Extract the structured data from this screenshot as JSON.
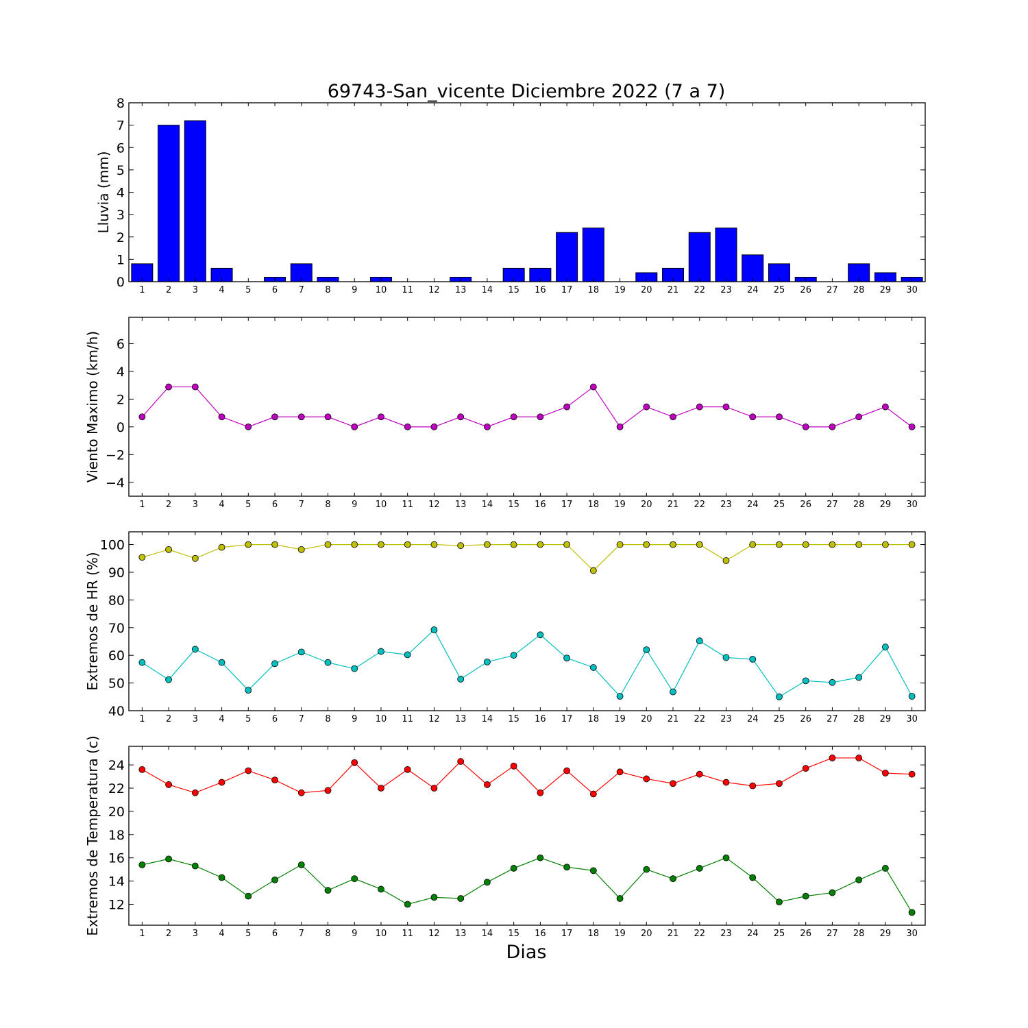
{
  "chart_data": [
    {
      "type": "bar",
      "title": "69743-San_vicente Diciembre 2022  (7 a 7)",
      "ylabel": "Lluvia (mm)",
      "categories": [
        "1",
        "2",
        "3",
        "4",
        "5",
        "6",
        "7",
        "8",
        "9",
        "10",
        "11",
        "12",
        "13",
        "14",
        "15",
        "16",
        "17",
        "18",
        "19",
        "20",
        "21",
        "22",
        "23",
        "24",
        "25",
        "26",
        "27",
        "28",
        "29",
        "30"
      ],
      "values": [
        0.8,
        7.0,
        7.2,
        0.6,
        0.0,
        0.2,
        0.8,
        0.2,
        0.0,
        0.2,
        0.0,
        0.0,
        0.2,
        0.0,
        0.6,
        0.6,
        2.2,
        2.4,
        0.0,
        0.4,
        0.6,
        2.2,
        2.4,
        1.2,
        0.8,
        0.2,
        0.0,
        0.8,
        0.4,
        0.2
      ],
      "ylim": [
        0,
        8
      ],
      "yticks": [
        0,
        1,
        2,
        3,
        4,
        5,
        6,
        7,
        8
      ],
      "colors": {
        "bar": "#0000ff"
      }
    },
    {
      "type": "line",
      "ylabel": "Viento Maximo (km/h)",
      "x": [
        1,
        2,
        3,
        4,
        5,
        6,
        7,
        8,
        9,
        10,
        11,
        12,
        13,
        14,
        15,
        16,
        17,
        18,
        19,
        20,
        21,
        22,
        23,
        24,
        25,
        26,
        27,
        28,
        29,
        30
      ],
      "series": [
        {
          "values": [
            0.72,
            2.88,
            2.88,
            0.72,
            0.0,
            0.72,
            0.72,
            0.72,
            0.0,
            0.72,
            0.0,
            0.0,
            0.72,
            0.0,
            0.72,
            0.72,
            1.44,
            2.88,
            0.0,
            1.44,
            0.72,
            1.44,
            1.44,
            0.72,
            0.72,
            0.0,
            0.0,
            0.72,
            1.44,
            0.0
          ],
          "color": "#bf00bf"
        }
      ],
      "ylim": [
        -5,
        7.9
      ],
      "yticks": [
        -4,
        -2,
        0,
        2,
        4,
        6
      ]
    },
    {
      "type": "line",
      "ylabel": "Extremos de HR (%)",
      "x": [
        1,
        2,
        3,
        4,
        5,
        6,
        7,
        8,
        9,
        10,
        11,
        12,
        13,
        14,
        15,
        16,
        17,
        18,
        19,
        20,
        21,
        22,
        23,
        24,
        25,
        26,
        27,
        28,
        29,
        30
      ],
      "series": [
        {
          "values": [
            95.4,
            98.2,
            95.0,
            99.0,
            100,
            100,
            98.2,
            100,
            100,
            100,
            100,
            100,
            99.6,
            100,
            100,
            100,
            100,
            90.6,
            100,
            100,
            100,
            100,
            94.2,
            100,
            100,
            100,
            100,
            100,
            100,
            100
          ],
          "color": "#bfbf00"
        },
        {
          "values": [
            57.4,
            51.2,
            62.2,
            57.4,
            47.4,
            57.0,
            61.2,
            57.4,
            55.2,
            61.4,
            60.2,
            69.2,
            51.4,
            57.6,
            60.0,
            67.4,
            59.0,
            55.6,
            45.2,
            62.0,
            46.8,
            65.2,
            59.2,
            58.6,
            45.0,
            50.8,
            50.2,
            52.0,
            63.0,
            45.2
          ],
          "color": "#00bfbf"
        }
      ],
      "ylim": [
        40,
        104.6
      ],
      "yticks": [
        40,
        50,
        60,
        70,
        80,
        90,
        100
      ]
    },
    {
      "type": "line",
      "ylabel": "Extremos de Temperatura (c)",
      "xlabel": "Dias",
      "x": [
        1,
        2,
        3,
        4,
        5,
        6,
        7,
        8,
        9,
        10,
        11,
        12,
        13,
        14,
        15,
        16,
        17,
        18,
        19,
        20,
        21,
        22,
        23,
        24,
        25,
        26,
        27,
        28,
        29,
        30
      ],
      "series": [
        {
          "values": [
            23.6,
            22.3,
            21.6,
            22.5,
            23.5,
            22.7,
            21.6,
            21.8,
            24.2,
            22.0,
            23.6,
            22.0,
            24.3,
            22.3,
            23.9,
            21.6,
            23.5,
            21.5,
            23.4,
            22.8,
            22.4,
            23.2,
            22.5,
            22.2,
            22.4,
            23.7,
            24.6,
            24.6,
            23.3,
            23.2
          ],
          "color": "#ff0000"
        },
        {
          "values": [
            15.4,
            15.9,
            15.3,
            14.3,
            12.7,
            14.1,
            15.4,
            13.2,
            14.2,
            13.3,
            12.0,
            12.6,
            12.5,
            13.9,
            15.1,
            16.0,
            15.2,
            14.9,
            12.5,
            15.0,
            14.2,
            15.1,
            16.0,
            14.3,
            12.2,
            12.7,
            13.0,
            14.1,
            15.1,
            11.3
          ],
          "color": "#008000"
        }
      ],
      "ylim": [
        10.2,
        25.6
      ],
      "yticks": [
        12,
        14,
        16,
        18,
        20,
        22,
        24
      ]
    }
  ]
}
